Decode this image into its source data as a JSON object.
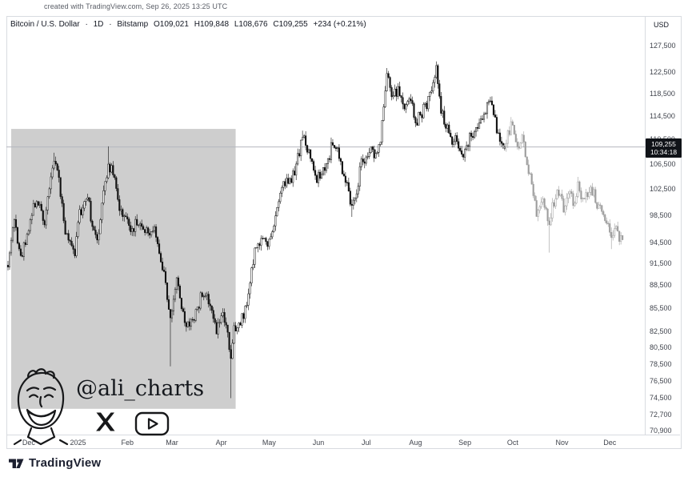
{
  "meta": {
    "note": "created with TradingView.com, Sep 26, 2025 13:25 UTC"
  },
  "header": {
    "symbol": "Bitcoin / U.S. Dollar",
    "sep": "·",
    "interval": "1D",
    "exchange": "Bitstamp",
    "o": "O109,021",
    "h": "H109,848",
    "l": "L108,676",
    "c": "C109,255",
    "change": "+234 (+0.21%)",
    "currency": "USD"
  },
  "price_label": {
    "price": "109,255",
    "countdown": "10:34:18"
  },
  "watermark": {
    "handle": "@ali_charts"
  },
  "footer": {
    "brand": "TradingView"
  },
  "chart_data": {
    "type": "candlestick",
    "title": "Bitcoin / U.S. Dollar, 1D, Bitstamp",
    "scale": "log",
    "grid": "off",
    "ylim": [
      70900,
      129500
    ],
    "current_price": 109255,
    "current_day": 312,
    "projection_start_day": 313,
    "last_day": 386,
    "noise_vol": 0.009,
    "ohlc_current": {
      "open": 109021,
      "high": 109848,
      "low": 108676,
      "close": 109255,
      "change": 234,
      "change_pct": 0.21
    },
    "y_ticks": [
      127500,
      122500,
      118500,
      114500,
      110500,
      106500,
      102500,
      98500,
      94500,
      91500,
      88500,
      85500,
      82500,
      80500,
      78500,
      76500,
      74500,
      72700,
      70900
    ],
    "y_tick_labels": [
      "127,500",
      "122,500",
      "118,500",
      "114,500",
      "110,500",
      "106,500",
      "102,500",
      "98,500",
      "94,500",
      "91,500",
      "88,500",
      "85,500",
      "82,500",
      "80,500",
      "78,500",
      "76,500",
      "74,500",
      "72,700",
      "70,900"
    ],
    "x_axis_months": [
      {
        "label": "Dec",
        "day": 13
      },
      {
        "label": "2025",
        "day": 44
      },
      {
        "label": "Feb",
        "day": 75
      },
      {
        "label": "Mar",
        "day": 103
      },
      {
        "label": "Apr",
        "day": 134
      },
      {
        "label": "May",
        "day": 164
      },
      {
        "label": "Jun",
        "day": 195
      },
      {
        "label": "Jul",
        "day": 225
      },
      {
        "label": "Aug",
        "day": 256
      },
      {
        "label": "Sep",
        "day": 287
      },
      {
        "label": "Oct",
        "day": 317
      },
      {
        "label": "Nov",
        "day": 348
      },
      {
        "label": "Dec",
        "day": 378
      }
    ],
    "highlight_box": {
      "day_start": 2,
      "day_end": 143,
      "price_top": 112300,
      "price_bottom": 73300,
      "color": "#c5c5c5"
    },
    "keypoints": [
      [
        0,
        91500
      ],
      [
        4,
        98000
      ],
      [
        8,
        92200
      ],
      [
        13,
        96800
      ],
      [
        18,
        101200
      ],
      [
        23,
        97500
      ],
      [
        29,
        107200
      ],
      [
        32,
        104300
      ],
      [
        36,
        95800
      ],
      [
        42,
        93200
      ],
      [
        45,
        98600
      ],
      [
        50,
        101900
      ],
      [
        53,
        96200
      ],
      [
        56,
        94600
      ],
      [
        60,
        102300
      ],
      [
        63,
        106100
      ],
      [
        66,
        105000
      ],
      [
        70,
        99400
      ],
      [
        75,
        97700
      ],
      [
        77,
        96500
      ],
      [
        82,
        97300
      ],
      [
        88,
        96200
      ],
      [
        93,
        95800
      ],
      [
        96,
        91500
      ],
      [
        99,
        88600
      ],
      [
        102,
        84300
      ],
      [
        104,
        86000
      ],
      [
        106,
        90000
      ],
      [
        111,
        82900
      ],
      [
        114,
        83800
      ],
      [
        117,
        84100
      ],
      [
        121,
        86800
      ],
      [
        124,
        87500
      ],
      [
        127,
        86400
      ],
      [
        131,
        82400
      ],
      [
        134,
        85100
      ],
      [
        137,
        83400
      ],
      [
        140,
        78500
      ],
      [
        142,
        82600
      ],
      [
        145,
        83700
      ],
      [
        148,
        84600
      ],
      [
        152,
        88500
      ],
      [
        155,
        93700
      ],
      [
        159,
        94600
      ],
      [
        164,
        94200
      ],
      [
        167,
        96500
      ],
      [
        171,
        102100
      ],
      [
        174,
        103300
      ],
      [
        178,
        103500
      ],
      [
        181,
        106400
      ],
      [
        185,
        111000
      ],
      [
        188,
        109000
      ],
      [
        191,
        107200
      ],
      [
        194,
        104000
      ],
      [
        197,
        104800
      ],
      [
        200,
        105700
      ],
      [
        204,
        110200
      ],
      [
        207,
        108900
      ],
      [
        210,
        105400
      ],
      [
        213,
        103900
      ],
      [
        216,
        99500
      ],
      [
        219,
        101200
      ],
      [
        222,
        107300
      ],
      [
        225,
        107000
      ],
      [
        228,
        108900
      ],
      [
        231,
        108100
      ],
      [
        234,
        110200
      ],
      [
        238,
        122000
      ],
      [
        241,
        117500
      ],
      [
        245,
        119100
      ],
      [
        249,
        115000
      ],
      [
        252,
        118000
      ],
      [
        256,
        113400
      ],
      [
        259,
        114600
      ],
      [
        263,
        116700
      ],
      [
        266,
        119400
      ],
      [
        269,
        123300
      ],
      [
        272,
        115200
      ],
      [
        275,
        113100
      ],
      [
        278,
        110200
      ],
      [
        281,
        111200
      ],
      [
        284,
        108400
      ],
      [
        287,
        108200
      ],
      [
        290,
        110900
      ],
      [
        293,
        111100
      ],
      [
        296,
        113500
      ],
      [
        299,
        115400
      ],
      [
        302,
        116400
      ],
      [
        304,
        116800
      ],
      [
        307,
        112500
      ],
      [
        310,
        109700
      ],
      [
        312,
        109255
      ],
      [
        314,
        111500
      ],
      [
        317,
        113200
      ],
      [
        320,
        109000
      ],
      [
        323,
        111800
      ],
      [
        326,
        107000
      ],
      [
        329,
        103500
      ],
      [
        332,
        98500
      ],
      [
        335,
        100800
      ],
      [
        338,
        99600
      ],
      [
        340,
        97200
      ],
      [
        343,
        100700
      ],
      [
        346,
        102000
      ],
      [
        349,
        99800
      ],
      [
        352,
        102400
      ],
      [
        355,
        100300
      ],
      [
        358,
        102700
      ],
      [
        361,
        100900
      ],
      [
        364,
        101800
      ],
      [
        367,
        102300
      ],
      [
        370,
        100200
      ],
      [
        373,
        98800
      ],
      [
        376,
        97300
      ],
      [
        379,
        94900
      ],
      [
        382,
        96300
      ],
      [
        384,
        95000
      ],
      [
        386,
        95300
      ]
    ],
    "notable_extremes": [
      [
        29,
        "high",
        108300
      ],
      [
        63,
        "high",
        109356
      ],
      [
        102,
        "low",
        78200
      ],
      [
        140,
        "low",
        74500
      ],
      [
        185,
        "high",
        112000
      ],
      [
        216,
        "low",
        98200
      ],
      [
        238,
        "high",
        123218
      ],
      [
        269,
        "high",
        124457
      ],
      [
        340,
        "low",
        93000
      ],
      [
        379,
        "low",
        93500
      ]
    ]
  }
}
